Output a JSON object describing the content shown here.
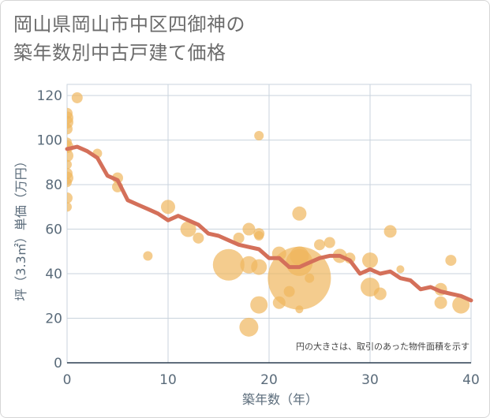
{
  "title_line1": "岡山県岡山市中区四御神の",
  "title_line2": "築年数別中古戸建て価格",
  "chart_data": {
    "type": "scatter",
    "xlabel": "築年数（年）",
    "ylabel": "坪（3.3㎡）単価（万円）",
    "note": "円の大きさは、取引のあった物件面積を示す",
    "xlim": [
      0,
      40
    ],
    "ylim": [
      0,
      125
    ],
    "xticks": [
      "0",
      "10",
      "20",
      "30",
      "40"
    ],
    "yticks": [
      "0",
      "20",
      "40",
      "60",
      "80",
      "100",
      "120"
    ],
    "colors": {
      "bubble": "#f0b75e",
      "line": "#d4705a",
      "grid": "#c9d3dd"
    },
    "scatter": [
      {
        "x": 0,
        "y": 112,
        "s": 7
      },
      {
        "x": 0,
        "y": 110,
        "s": 8
      },
      {
        "x": 0,
        "y": 108,
        "s": 8
      },
      {
        "x": 0,
        "y": 105,
        "s": 7
      },
      {
        "x": 0,
        "y": 99,
        "s": 6
      },
      {
        "x": 0,
        "y": 97,
        "s": 8
      },
      {
        "x": 0,
        "y": 93,
        "s": 8
      },
      {
        "x": 0,
        "y": 89,
        "s": 6
      },
      {
        "x": 0,
        "y": 85,
        "s": 7
      },
      {
        "x": 0,
        "y": 83,
        "s": 8
      },
      {
        "x": 0,
        "y": 81,
        "s": 6
      },
      {
        "x": 0,
        "y": 74,
        "s": 7
      },
      {
        "x": 0,
        "y": 70,
        "s": 6
      },
      {
        "x": 1,
        "y": 119,
        "s": 7
      },
      {
        "x": 3,
        "y": 94,
        "s": 6
      },
      {
        "x": 5,
        "y": 83,
        "s": 7
      },
      {
        "x": 5,
        "y": 79,
        "s": 7
      },
      {
        "x": 8,
        "y": 48,
        "s": 6
      },
      {
        "x": 10,
        "y": 70,
        "s": 9
      },
      {
        "x": 12,
        "y": 60,
        "s": 10
      },
      {
        "x": 13,
        "y": 56,
        "s": 7
      },
      {
        "x": 16,
        "y": 44,
        "s": 20
      },
      {
        "x": 17,
        "y": 56,
        "s": 7
      },
      {
        "x": 18,
        "y": 60,
        "s": 8
      },
      {
        "x": 18,
        "y": 44,
        "s": 11
      },
      {
        "x": 18,
        "y": 16,
        "s": 12
      },
      {
        "x": 19,
        "y": 102,
        "s": 6
      },
      {
        "x": 19,
        "y": 58,
        "s": 7
      },
      {
        "x": 19,
        "y": 57,
        "s": 6
      },
      {
        "x": 19,
        "y": 43,
        "s": 10
      },
      {
        "x": 19,
        "y": 26,
        "s": 11
      },
      {
        "x": 21,
        "y": 49,
        "s": 9
      },
      {
        "x": 21,
        "y": 27,
        "s": 8
      },
      {
        "x": 22,
        "y": 32,
        "s": 7
      },
      {
        "x": 23,
        "y": 67,
        "s": 9
      },
      {
        "x": 23,
        "y": 48,
        "s": 12
      },
      {
        "x": 23,
        "y": 45,
        "s": 17
      },
      {
        "x": 23,
        "y": 38,
        "s": 40
      },
      {
        "x": 23,
        "y": 24,
        "s": 5
      },
      {
        "x": 24,
        "y": 38,
        "s": 6
      },
      {
        "x": 25,
        "y": 53,
        "s": 7
      },
      {
        "x": 26,
        "y": 54,
        "s": 7
      },
      {
        "x": 27,
        "y": 48,
        "s": 9
      },
      {
        "x": 28,
        "y": 47,
        "s": 7
      },
      {
        "x": 30,
        "y": 46,
        "s": 10
      },
      {
        "x": 30,
        "y": 34,
        "s": 12
      },
      {
        "x": 31,
        "y": 31,
        "s": 8
      },
      {
        "x": 32,
        "y": 59,
        "s": 8
      },
      {
        "x": 33,
        "y": 42,
        "s": 5
      },
      {
        "x": 37,
        "y": 33,
        "s": 8
      },
      {
        "x": 37,
        "y": 27,
        "s": 8
      },
      {
        "x": 38,
        "y": 46,
        "s": 7
      },
      {
        "x": 39,
        "y": 26,
        "s": 11
      }
    ],
    "series": [
      {
        "x": [
          0,
          1,
          2,
          3,
          4,
          5,
          6,
          7,
          8,
          9,
          10,
          11,
          12,
          13,
          14,
          15,
          16,
          17,
          18,
          19,
          20,
          21,
          22,
          23,
          24,
          25,
          26,
          27,
          28,
          29,
          30,
          31,
          32,
          33,
          34,
          35,
          36,
          37,
          38,
          39,
          40
        ],
        "y": [
          96,
          97,
          95,
          92,
          84,
          82,
          73,
          71,
          69,
          67,
          64,
          66,
          64,
          62,
          58,
          57,
          55,
          53,
          52,
          51,
          47,
          47,
          43,
          43,
          45,
          47,
          48,
          48,
          46,
          40,
          42,
          40,
          41,
          38,
          37,
          33,
          34,
          32,
          31,
          30,
          28
        ]
      }
    ]
  }
}
